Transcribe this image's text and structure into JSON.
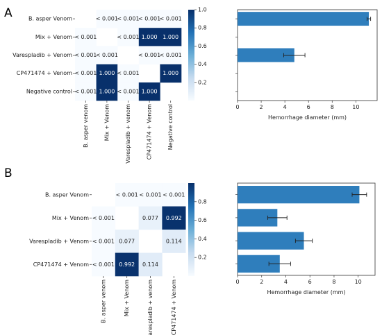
{
  "panels": [
    {
      "letter": "A",
      "heatmap": {
        "rows": [
          "B. asper Venom",
          "Mix + Venom",
          "Varespladib + Venom",
          "CP471474 + Venom",
          "Negative control"
        ],
        "cols": [
          "B. asper venom",
          "Mix + Venom",
          "Varespladib + venom",
          "CP471474 + Venom",
          "Negative control"
        ],
        "cells": [
          [
            "",
            "< 0.001",
            "< 0.001",
            "< 0.001",
            "< 0.001"
          ],
          [
            "< 0.001",
            "",
            "< 0.001",
            "1.000",
            "1.000"
          ],
          [
            "< 0.001",
            "< 0.001",
            "",
            "< 0.001",
            "< 0.001"
          ],
          [
            "< 0.001",
            "1.000",
            "< 0.001",
            "",
            "1.000"
          ],
          [
            "< 0.001",
            "1.000",
            "< 0.001",
            "1.000",
            ""
          ]
        ],
        "colorbar_ticks": [
          "1.0",
          "0.8",
          "0.6",
          "0.4",
          "0.2"
        ],
        "colorbar_range": [
          0.0,
          1.0
        ]
      }
    },
    {
      "letter": "B",
      "heatmap": {
        "rows": [
          "B. asper Venom",
          "Mix + Venom",
          "Varespladib + Venom",
          "CP471474 + Venom"
        ],
        "cols": [
          "B. asper venom",
          "Mix + Venom",
          "Varespladib + venom",
          "CP471474 + Venom"
        ],
        "cells": [
          [
            "",
            "< 0.001",
            "< 0.001",
            "< 0.001"
          ],
          [
            "< 0.001",
            "",
            "0.077",
            "0.992"
          ],
          [
            "< 0.001",
            "0.077",
            "",
            "0.114"
          ],
          [
            "< 0.001",
            "0.992",
            "0.114",
            ""
          ]
        ],
        "colorbar_ticks": [
          "0.8",
          "0.6",
          "0.4",
          "0.2"
        ],
        "colorbar_range": [
          0.0,
          1.0
        ]
      }
    }
  ],
  "chart_data": [
    {
      "type": "heatmap",
      "title": "",
      "rows": [
        "B. asper Venom",
        "Mix + Venom",
        "Varespladib + Venom",
        "CP471474 + Venom",
        "Negative control"
      ],
      "cols": [
        "B. asper venom",
        "Mix + Venom",
        "Varespladib + venom",
        "CP471474 + Venom",
        "Negative control"
      ],
      "values": [
        [
          null,
          0.0,
          0.0,
          0.0,
          0.0
        ],
        [
          0.0,
          null,
          0.0,
          1.0,
          1.0
        ],
        [
          0.0,
          0.0,
          null,
          0.0,
          0.0
        ],
        [
          0.0,
          1.0,
          0.0,
          null,
          1.0
        ],
        [
          0.0,
          1.0,
          0.0,
          1.0,
          null
        ]
      ],
      "colorbar_range": [
        0.0,
        1.0
      ]
    },
    {
      "type": "bar",
      "orientation": "horizontal",
      "categories": [
        "B. asper Venom",
        "Mix + Venom",
        "Varespladib + Venom",
        "CP471474 + Venom",
        "Negative control"
      ],
      "values": [
        11.1,
        0,
        4.8,
        0,
        0
      ],
      "errors": [
        0.15,
        0,
        0.9,
        0,
        0
      ],
      "xlabel": "Hemorrhage diameter (mm)",
      "xticks": [
        "0",
        "2",
        "4",
        "6",
        "8",
        "10"
      ],
      "xlim": [
        0,
        11.8
      ]
    },
    {
      "type": "heatmap",
      "title": "",
      "rows": [
        "B. asper Venom",
        "Mix + Venom",
        "Varespladib + Venom",
        "CP471474 + Venom"
      ],
      "cols": [
        "B. asper venom",
        "Mix + Venom",
        "Varespladib + venom",
        "CP471474 + Venom"
      ],
      "values": [
        [
          null,
          0.0,
          0.0,
          0.0
        ],
        [
          0.0,
          null,
          0.077,
          0.992
        ],
        [
          0.0,
          0.077,
          null,
          0.114
        ],
        [
          0.0,
          0.992,
          0.114,
          null
        ]
      ],
      "colorbar_range": [
        0.0,
        1.0
      ]
    },
    {
      "type": "bar",
      "orientation": "horizontal",
      "categories": [
        "B. asper Venom",
        "Mix + Venom",
        "Varespladib + Venom",
        "CP471474 + Venom"
      ],
      "values": [
        10.1,
        3.3,
        5.5,
        3.5
      ],
      "errors": [
        0.6,
        0.8,
        0.7,
        0.9
      ],
      "xlabel": "Hemorrhage diameter (mm)",
      "xticks": [
        "0",
        "2",
        "4",
        "6",
        "8",
        "10"
      ],
      "xlim": [
        0,
        11.4
      ]
    }
  ],
  "colors": {
    "bar": "#2f7ebc",
    "cmap_low": "#f7fbff",
    "cmap_high": "#08306b"
  }
}
